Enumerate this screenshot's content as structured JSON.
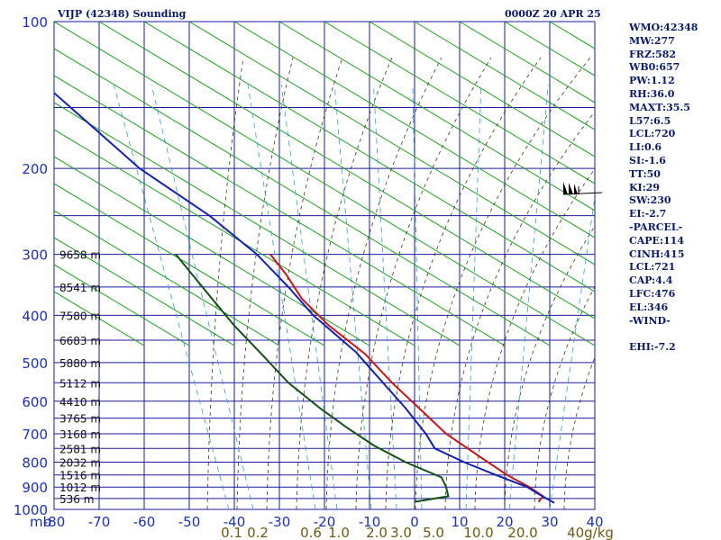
{
  "header": {
    "title": "VIJP (42348) Sounding",
    "time": "0000Z 20 APR 25"
  },
  "indices": [
    "WMO:42348",
    "MW:277",
    "FRZ:582",
    "WB0:657",
    "PW:1.12",
    "RH:36.0",
    "MAXT:35.5",
    "L57:6.5",
    "LCL:720",
    "LI:0.6",
    "SI:-1.6",
    "TT:50",
    "KI:29",
    "SW:230",
    "EI:-2.7",
    "-PARCEL-",
    "CAPE:114",
    "CINH:415",
    "LCL:721",
    "CAP:4.4",
    "LFC:476",
    "EL:346",
    "-WIND-",
    "",
    "EHI:-7.2"
  ],
  "colors": {
    "grid": "#1a1aa0",
    "dry_adiabat": "#1aa01a",
    "moist_adiabat": "#3a3a10",
    "mixing_ratio": "#2aa0d0",
    "temperature": "#c81414",
    "dewpoint": "#145014",
    "parcel": "#1420b0"
  },
  "chart_data": {
    "type": "line",
    "title": "VIJP (42348) Sounding",
    "subtitle": "0000Z 20 APR 25",
    "x_axis": {
      "unit_label": "mb",
      "range": [
        -80,
        40
      ],
      "ticks": [
        -80,
        -70,
        -60,
        -50,
        -40,
        -30,
        -20,
        -10,
        0,
        10,
        20,
        30,
        40
      ],
      "tick_labels": [
        "-80",
        "-70",
        "-60",
        "-50",
        "-40",
        "-30",
        "-20",
        "-10",
        "0",
        "10",
        "20",
        "30",
        "40"
      ]
    },
    "y_axis": {
      "scale": "log",
      "range": [
        100,
        1000
      ],
      "ticks": [
        100,
        200,
        300,
        400,
        500,
        600,
        700,
        800,
        900,
        1000
      ],
      "tick_labels": [
        "100",
        "200",
        "300",
        "400",
        "500",
        "600",
        "700",
        "800",
        "900",
        "1000"
      ]
    },
    "extra_grid_pressures": [
      150,
      250,
      350,
      450,
      550,
      650,
      750,
      850,
      950
    ],
    "heights": [
      {
        "p": 300,
        "label": "9658 m"
      },
      {
        "p": 350,
        "label": "8541 m"
      },
      {
        "p": 400,
        "label": "7580 m"
      },
      {
        "p": 450,
        "label": "6683 m"
      },
      {
        "p": 500,
        "label": "5880 m"
      },
      {
        "p": 550,
        "label": "5112 m"
      },
      {
        "p": 600,
        "label": "4410 m"
      },
      {
        "p": 650,
        "label": "3765 m"
      },
      {
        "p": 700,
        "label": "3168 m"
      },
      {
        "p": 750,
        "label": "2581 m"
      },
      {
        "p": 800,
        "label": "2032 m"
      },
      {
        "p": 850,
        "label": "1516 m"
      },
      {
        "p": 900,
        "label": "1012 m"
      },
      {
        "p": 950,
        "label": "536 m"
      }
    ],
    "mixing_ratio_labels": [
      "0.1",
      "0.2",
      "0.6",
      "1.0",
      "2.0",
      "3.0",
      "5.0",
      "10.0",
      "20.0",
      "40g/kg"
    ],
    "series": [
      {
        "key": "temperature",
        "points": [
          [
            300,
            -32
          ],
          [
            330,
            -28.5
          ],
          [
            370,
            -25
          ],
          [
            420,
            -19
          ],
          [
            480,
            -11
          ],
          [
            550,
            -5
          ],
          [
            620,
            1
          ],
          [
            700,
            7
          ],
          [
            780,
            14.5
          ],
          [
            850,
            20.5
          ],
          [
            900,
            25.5
          ],
          [
            940,
            28.5
          ],
          [
            965,
            27.5
          ]
        ]
      },
      {
        "key": "dewpoint",
        "points": [
          [
            300,
            -53
          ],
          [
            360,
            -46
          ],
          [
            420,
            -40
          ],
          [
            480,
            -34
          ],
          [
            550,
            -28
          ],
          [
            620,
            -21
          ],
          [
            680,
            -15
          ],
          [
            740,
            -9
          ],
          [
            800,
            -2
          ],
          [
            860,
            6
          ],
          [
            900,
            7
          ],
          [
            940,
            7.5
          ],
          [
            965,
            0
          ]
        ]
      },
      {
        "key": "parcel",
        "points": [
          [
            140,
            -80
          ],
          [
            200,
            -61
          ],
          [
            250,
            -45.5
          ],
          [
            300,
            -35
          ],
          [
            350,
            -28
          ],
          [
            400,
            -22.5
          ],
          [
            476,
            -13
          ],
          [
            550,
            -7
          ],
          [
            620,
            -2
          ],
          [
            700,
            2.5
          ],
          [
            750,
            4.5
          ],
          [
            800,
            11
          ],
          [
            850,
            18
          ],
          [
            900,
            25
          ],
          [
            930,
            27.5
          ],
          [
            970,
            31
          ]
        ]
      }
    ]
  }
}
